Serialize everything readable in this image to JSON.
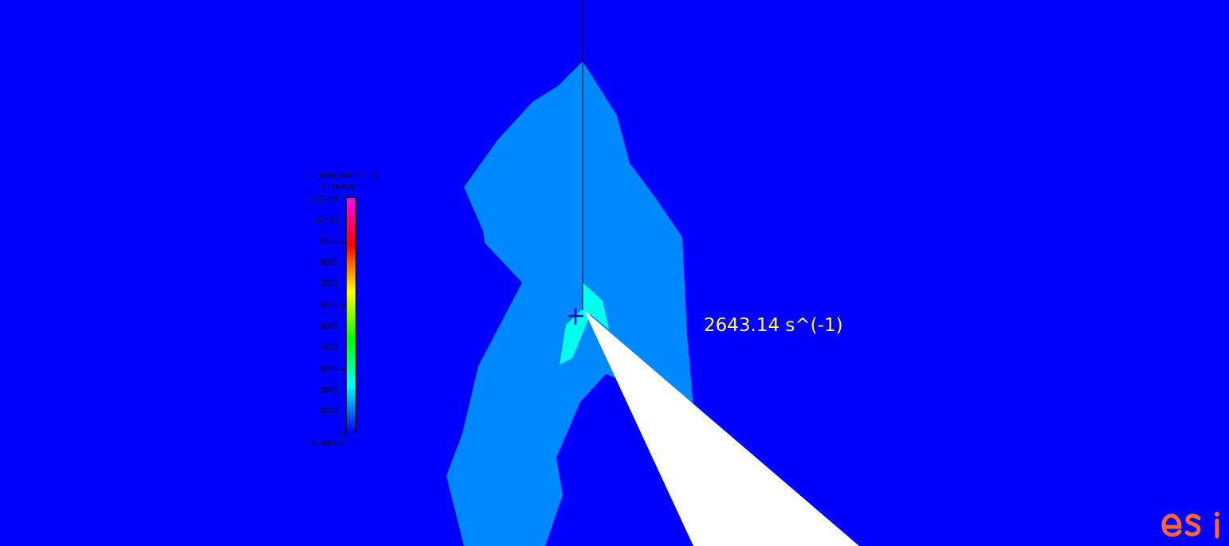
{
  "viewport": {
    "background_color": "#0000FF"
  },
  "legend": {
    "title": "STRAIN RATE - 1/s",
    "max_label": "1.11E+04",
    "ticks": [
      {
        "label": "1.1E+04",
        "value": 11000
      },
      {
        "label": "1E+04",
        "value": 10000
      },
      {
        "label": "9000",
        "value": 9000
      },
      {
        "label": "8000",
        "value": 8000
      },
      {
        "label": "7000",
        "value": 7000
      },
      {
        "label": "6000",
        "value": 6000
      },
      {
        "label": "5000",
        "value": 5000
      },
      {
        "label": "4000",
        "value": 4000
      },
      {
        "label": "3000",
        "value": 3000
      },
      {
        "label": "2000",
        "value": 2000
      },
      {
        "label": "1000",
        "value": 1000
      },
      {
        "label": "0.000567",
        "value": 0.000567
      }
    ],
    "range": [
      0.000567,
      11100
    ],
    "colors": [
      "#0000FF",
      "#0080FF",
      "#00FFFF",
      "#00FF80",
      "#00FF00",
      "#80FF00",
      "#FFFF00",
      "#FF8000",
      "#FF0000",
      "#FF0080",
      "#FF00FF"
    ]
  },
  "probe": {
    "value_text": "2643.14 s^(-1)",
    "color": "#FFFF66",
    "marker_color": "#0000CC"
  },
  "field": {
    "outer_region_color": "#0000FF",
    "band_region_color": "#0088FF",
    "peak_region_color": "#00FFEE",
    "tool_color": "#FFFFFF",
    "line_color": "#000000"
  },
  "logo": {
    "text": "esi",
    "color": "#FF6633"
  }
}
